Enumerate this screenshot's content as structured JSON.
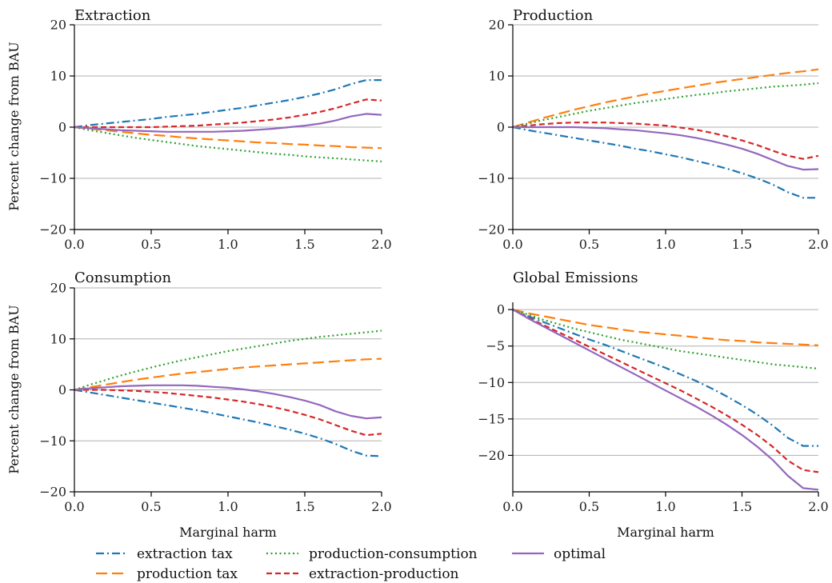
{
  "figure": {
    "xlabel": "Marginal harm",
    "ylabel": "Percent change from BAU"
  },
  "legend": [
    {
      "series": "extraction_tax",
      "label": "extraction tax"
    },
    {
      "series": "production_tax",
      "label": "production tax"
    },
    {
      "series": "production_consumption",
      "label": "production-consumption"
    },
    {
      "series": "extraction_production",
      "label": "extraction-production"
    },
    {
      "series": "optimal",
      "label": "optimal"
    }
  ],
  "styles": {
    "extraction_tax": {
      "color": "#1f77b4",
      "dash": "dashdot"
    },
    "production_tax": {
      "color": "#ff7f0e",
      "dash": "longdash"
    },
    "production_consumption": {
      "color": "#2ca02c",
      "dash": "dotted"
    },
    "extraction_production": {
      "color": "#d62728",
      "dash": "dashed"
    },
    "optimal": {
      "color": "#9467bd",
      "dash": "solid"
    }
  },
  "chart_data": [
    {
      "type": "line",
      "title": "Extraction",
      "xlabel": "",
      "ylabel": "Percent change from BAU",
      "xlim": [
        0,
        2
      ],
      "ylim": [
        -20,
        20
      ],
      "xticks": [
        "0.0",
        "0.5",
        "1.0",
        "1.5",
        "2.0"
      ],
      "yticks": [
        "−20",
        "−10",
        "0",
        "10",
        "20"
      ],
      "grid": "horizontal",
      "x": [
        0,
        0.1,
        0.2,
        0.3,
        0.4,
        0.5,
        0.6,
        0.7,
        0.8,
        0.9,
        1.0,
        1.1,
        1.2,
        1.3,
        1.4,
        1.5,
        1.6,
        1.7,
        1.8,
        1.9,
        2.0
      ],
      "series": [
        {
          "key": "extraction_tax",
          "values": [
            0,
            0.4,
            0.7,
            1.0,
            1.3,
            1.6,
            2.0,
            2.3,
            2.6,
            3.0,
            3.4,
            3.8,
            4.3,
            4.8,
            5.3,
            5.9,
            6.6,
            7.4,
            8.4,
            9.2,
            9.2
          ]
        },
        {
          "key": "production_tax",
          "values": [
            0,
            -0.3,
            -0.6,
            -0.9,
            -1.2,
            -1.5,
            -1.7,
            -2.0,
            -2.2,
            -2.4,
            -2.6,
            -2.8,
            -3.0,
            -3.1,
            -3.3,
            -3.4,
            -3.6,
            -3.7,
            -3.9,
            -4.0,
            -4.1
          ]
        },
        {
          "key": "production_consumption",
          "values": [
            0,
            -0.6,
            -1.1,
            -1.6,
            -2.1,
            -2.5,
            -2.9,
            -3.3,
            -3.7,
            -4.0,
            -4.3,
            -4.6,
            -4.9,
            -5.2,
            -5.4,
            -5.7,
            -5.9,
            -6.1,
            -6.3,
            -6.5,
            -6.7
          ]
        },
        {
          "key": "extraction_production",
          "values": [
            0,
            0,
            0,
            0,
            0,
            0,
            0.1,
            0.2,
            0.3,
            0.5,
            0.7,
            0.9,
            1.2,
            1.5,
            1.9,
            2.4,
            3.0,
            3.7,
            4.6,
            5.4,
            5.2
          ]
        },
        {
          "key": "optimal",
          "values": [
            0,
            -0.2,
            -0.4,
            -0.6,
            -0.7,
            -0.8,
            -0.9,
            -0.9,
            -0.9,
            -0.9,
            -0.8,
            -0.7,
            -0.5,
            -0.3,
            0,
            0.3,
            0.7,
            1.3,
            2.1,
            2.6,
            2.4
          ]
        }
      ]
    },
    {
      "type": "line",
      "title": "Production",
      "xlabel": "",
      "ylabel": "",
      "xlim": [
        0,
        2
      ],
      "ylim": [
        -20,
        20
      ],
      "xticks": [
        "0.0",
        "0.5",
        "1.0",
        "1.5",
        "2.0"
      ],
      "yticks": [
        "−20",
        "−10",
        "0",
        "10",
        "20"
      ],
      "grid": "horizontal",
      "x": [
        0,
        0.1,
        0.2,
        0.3,
        0.4,
        0.5,
        0.6,
        0.7,
        0.8,
        0.9,
        1.0,
        1.1,
        1.2,
        1.3,
        1.4,
        1.5,
        1.6,
        1.7,
        1.8,
        1.9,
        2.0
      ],
      "series": [
        {
          "key": "extraction_tax",
          "values": [
            0,
            -0.6,
            -1.1,
            -1.6,
            -2.1,
            -2.6,
            -3.1,
            -3.6,
            -4.2,
            -4.7,
            -5.3,
            -5.9,
            -6.6,
            -7.3,
            -8.1,
            -9.0,
            -10.0,
            -11.2,
            -12.7,
            -13.8,
            -13.8
          ]
        },
        {
          "key": "production_tax",
          "values": [
            0,
            0.9,
            1.8,
            2.6,
            3.4,
            4.1,
            4.8,
            5.4,
            6.0,
            6.6,
            7.1,
            7.6,
            8.1,
            8.6,
            9.0,
            9.4,
            9.8,
            10.2,
            10.6,
            10.9,
            11.3
          ]
        },
        {
          "key": "production_consumption",
          "values": [
            0,
            0.7,
            1.4,
            2.0,
            2.6,
            3.2,
            3.7,
            4.2,
            4.7,
            5.1,
            5.5,
            5.9,
            6.3,
            6.6,
            7.0,
            7.3,
            7.6,
            7.9,
            8.1,
            8.3,
            8.6
          ]
        },
        {
          "key": "extraction_production",
          "values": [
            0,
            0.3,
            0.6,
            0.8,
            0.9,
            0.9,
            0.9,
            0.8,
            0.7,
            0.5,
            0.3,
            -0.1,
            -0.5,
            -1.1,
            -1.8,
            -2.6,
            -3.5,
            -4.6,
            -5.6,
            -6.2,
            -5.6
          ]
        },
        {
          "key": "optimal",
          "values": [
            0,
            0,
            0,
            0,
            0,
            -0.1,
            -0.2,
            -0.4,
            -0.6,
            -0.9,
            -1.2,
            -1.6,
            -2.1,
            -2.7,
            -3.4,
            -4.2,
            -5.2,
            -6.4,
            -7.6,
            -8.3,
            -8.2
          ]
        }
      ]
    },
    {
      "type": "line",
      "title": "Consumption",
      "xlabel": "Marginal harm",
      "ylabel": "Percent change from BAU",
      "xlim": [
        0,
        2
      ],
      "ylim": [
        -20,
        20
      ],
      "xticks": [
        "0.0",
        "0.5",
        "1.0",
        "1.5",
        "2.0"
      ],
      "yticks": [
        "−20",
        "−10",
        "0",
        "10",
        "20"
      ],
      "grid": "horizontal",
      "x": [
        0,
        0.1,
        0.2,
        0.3,
        0.4,
        0.5,
        0.6,
        0.7,
        0.8,
        0.9,
        1.0,
        1.1,
        1.2,
        1.3,
        1.4,
        1.5,
        1.6,
        1.7,
        1.8,
        1.9,
        2.0
      ],
      "series": [
        {
          "key": "extraction_tax",
          "values": [
            0,
            -0.5,
            -1.0,
            -1.5,
            -2.0,
            -2.5,
            -3.0,
            -3.5,
            -4.0,
            -4.6,
            -5.2,
            -5.8,
            -6.4,
            -7.1,
            -7.8,
            -8.6,
            -9.5,
            -10.6,
            -11.9,
            -12.9,
            -13.0
          ]
        },
        {
          "key": "production_tax",
          "values": [
            0,
            0.5,
            1.0,
            1.5,
            2.0,
            2.4,
            2.8,
            3.2,
            3.5,
            3.8,
            4.1,
            4.4,
            4.6,
            4.8,
            5.0,
            5.2,
            5.4,
            5.6,
            5.8,
            6.0,
            6.1
          ]
        },
        {
          "key": "production_consumption",
          "values": [
            0,
            1.0,
            1.9,
            2.8,
            3.6,
            4.4,
            5.1,
            5.8,
            6.4,
            7.0,
            7.6,
            8.1,
            8.6,
            9.1,
            9.6,
            10.0,
            10.4,
            10.7,
            11.0,
            11.3,
            11.6
          ]
        },
        {
          "key": "extraction_production",
          "values": [
            0,
            0,
            0,
            -0.1,
            -0.2,
            -0.4,
            -0.6,
            -0.9,
            -1.2,
            -1.5,
            -1.9,
            -2.3,
            -2.8,
            -3.4,
            -4.1,
            -4.9,
            -5.8,
            -6.9,
            -8.0,
            -8.9,
            -8.6
          ]
        },
        {
          "key": "optimal",
          "values": [
            0,
            0.3,
            0.5,
            0.7,
            0.8,
            0.9,
            0.9,
            0.9,
            0.8,
            0.6,
            0.4,
            0.1,
            -0.3,
            -0.8,
            -1.4,
            -2.1,
            -3.0,
            -4.2,
            -5.1,
            -5.6,
            -5.4
          ]
        }
      ]
    },
    {
      "type": "line",
      "title": "Global Emissions",
      "xlabel": "Marginal harm",
      "ylabel": "",
      "xlim": [
        0,
        2
      ],
      "ylim": [
        -25,
        1
      ],
      "xticks": [
        "0.0",
        "0.5",
        "1.0",
        "1.5",
        "2.0"
      ],
      "yticks": [
        "−20",
        "−15",
        "−10",
        "−5",
        "0"
      ],
      "grid": "horizontal",
      "x": [
        0,
        0.1,
        0.2,
        0.3,
        0.4,
        0.5,
        0.6,
        0.7,
        0.8,
        0.9,
        1.0,
        1.1,
        1.2,
        1.3,
        1.4,
        1.5,
        1.6,
        1.7,
        1.8,
        1.9,
        2.0
      ],
      "series": [
        {
          "key": "extraction_tax",
          "values": [
            0,
            -0.9,
            -1.7,
            -2.5,
            -3.3,
            -4.1,
            -4.8,
            -5.6,
            -6.4,
            -7.2,
            -8.0,
            -8.9,
            -9.8,
            -10.8,
            -11.9,
            -13.1,
            -14.4,
            -15.9,
            -17.6,
            -18.7,
            -18.7
          ]
        },
        {
          "key": "production_tax",
          "values": [
            0,
            -0.5,
            -0.9,
            -1.3,
            -1.7,
            -2.1,
            -2.4,
            -2.7,
            -3.0,
            -3.2,
            -3.4,
            -3.6,
            -3.8,
            -4.0,
            -4.2,
            -4.3,
            -4.5,
            -4.6,
            -4.7,
            -4.8,
            -4.9
          ]
        },
        {
          "key": "production_consumption",
          "values": [
            0,
            -0.7,
            -1.4,
            -2.0,
            -2.6,
            -3.1,
            -3.6,
            -4.1,
            -4.5,
            -4.9,
            -5.3,
            -5.7,
            -6.0,
            -6.3,
            -6.6,
            -6.9,
            -7.2,
            -7.5,
            -7.7,
            -7.9,
            -8.1
          ]
        },
        {
          "key": "extraction_production",
          "values": [
            0,
            -1.1,
            -2.1,
            -3.1,
            -4.1,
            -5.1,
            -6.1,
            -7.1,
            -8.1,
            -9.1,
            -10.1,
            -11.1,
            -12.2,
            -13.3,
            -14.5,
            -15.8,
            -17.2,
            -18.8,
            -20.7,
            -22.0,
            -22.3
          ]
        },
        {
          "key": "optimal",
          "values": [
            0,
            -1.2,
            -2.3,
            -3.4,
            -4.5,
            -5.6,
            -6.7,
            -7.8,
            -8.9,
            -10.0,
            -11.1,
            -12.2,
            -13.3,
            -14.5,
            -15.8,
            -17.2,
            -18.8,
            -20.6,
            -22.8,
            -24.5,
            -24.7
          ]
        }
      ]
    }
  ]
}
